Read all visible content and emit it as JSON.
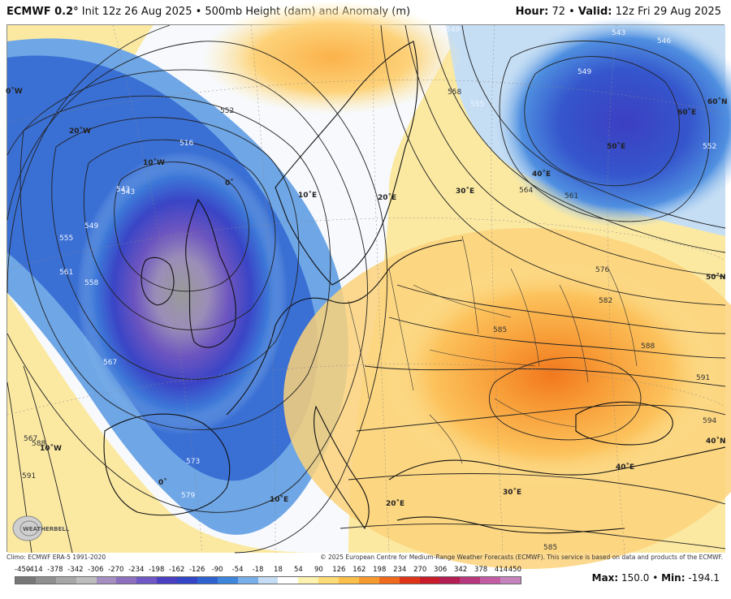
{
  "header": {
    "model": "ECMWF 0.2°",
    "init": " Init 12z 26 Aug 2025 • 500mb Height (dam) and Anomaly (m)",
    "hour_label": "Hour:",
    "hour_value": " 72 • ",
    "valid_label": "Valid:",
    "valid_value": " 12z Fri 29 Aug 2025"
  },
  "map": {
    "contour_labels": [
      "543",
      "549",
      "555",
      "561",
      "558",
      "567",
      "573",
      "579",
      "543",
      "546",
      "549",
      "552",
      "555",
      "558",
      "561",
      "564",
      "567",
      "576",
      "582",
      "585",
      "588",
      "591",
      "594",
      "588",
      "591",
      "585",
      "552",
      "516",
      "549",
      "543"
    ],
    "geo_labels": {
      "w20": "20˚W",
      "w10a": "10˚W",
      "zero_a": "0˚",
      "e10a": "10˚E",
      "e20a": "20˚E",
      "e30a": "30˚E",
      "e40a": "40˚E",
      "e50": "50˚E",
      "e60": "60˚E",
      "n60": "60˚N",
      "n50": "50˚N",
      "n40": "40˚N",
      "w10b": "10˚W",
      "zero_b": "0˚",
      "e10b": "10˚E",
      "e20b": "20˚E",
      "e30b": "30˚E",
      "e40b": "40˚E",
      "w0_left": "0˚W"
    }
  },
  "credits": {
    "climo": "Climo: ECMWF ERA-5 1991-2020",
    "copyright": "© 2025 European Centre for Medium-Range Weather Forecasts (ECMWF). This service is based on data and products of the ECMWF."
  },
  "logo_text": "WEATHERBELL",
  "colorbar": {
    "labels": [
      "-450",
      "-414",
      "-378",
      "-342",
      "-306",
      "-270",
      "-234",
      "-198",
      "-162",
      "-126",
      "-90",
      "-54",
      "-18",
      "18",
      "54",
      "90",
      "126",
      "162",
      "198",
      "234",
      "270",
      "306",
      "342",
      "378",
      "414",
      "450"
    ],
    "colors": [
      "#777777",
      "#8f8f8f",
      "#a7a7a7",
      "#bdbdbd",
      "#a58fc0",
      "#8d6fc0",
      "#6f58c6",
      "#4a3fc2",
      "#3346c8",
      "#2e62d0",
      "#3d86dc",
      "#79afe8",
      "#c4dcf4",
      "#ffffff",
      "#fdf2b0",
      "#fddc78",
      "#fbbf4c",
      "#f79a2e",
      "#f06a1e",
      "#e03418",
      "#c81c2a",
      "#b31d52",
      "#b8387e",
      "#c45ca4",
      "#c483bc"
    ]
  },
  "stats": {
    "max_label": "Max:",
    "max_value": " 150.0 • ",
    "min_label": "Min:",
    "min_value": " -194.1"
  }
}
